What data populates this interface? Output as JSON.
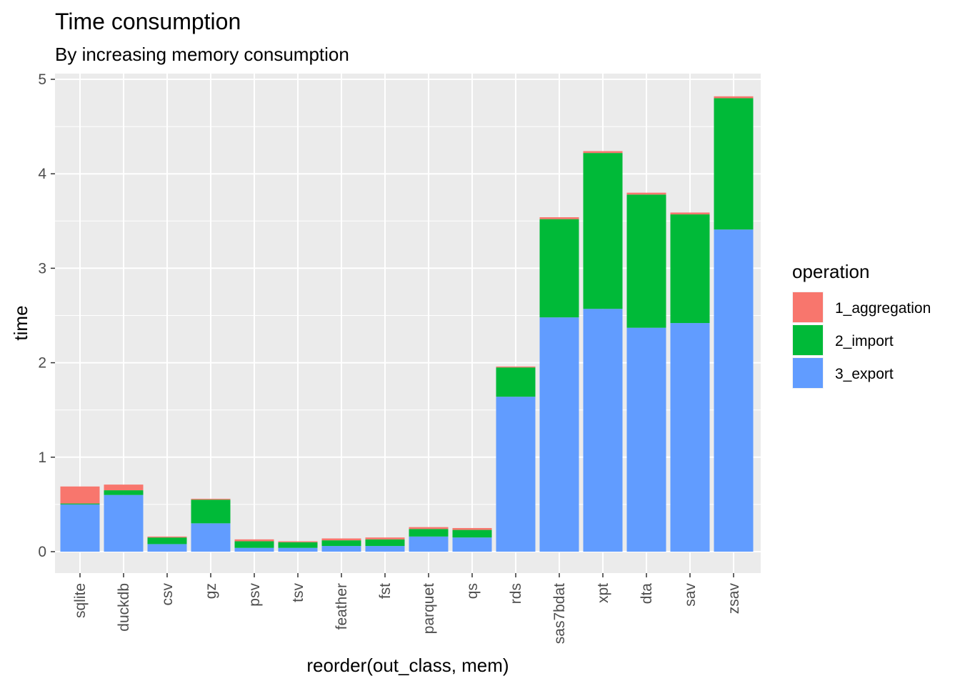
{
  "chart_data": {
    "type": "bar",
    "stacked": true,
    "title": "Time consumption",
    "subtitle": "By increasing memory consumption",
    "xlabel": "reorder(out_class, mem)",
    "ylabel": "time",
    "ylim": [
      0,
      5
    ],
    "yticks": [
      0,
      1,
      2,
      3,
      4,
      5
    ],
    "grid": true,
    "legend": {
      "title": "operation",
      "placement": "right"
    },
    "categories": [
      "sqlite",
      "duckdb",
      "csv",
      "gz",
      "psv",
      "tsv",
      "feather",
      "fst",
      "parquet",
      "qs",
      "rds",
      "sas7bdat",
      "xpt",
      "dta",
      "sav",
      "zsav"
    ],
    "series": [
      {
        "name": "1_aggregation",
        "color": "#F8766D",
        "values": [
          0.18,
          0.06,
          0.01,
          0.01,
          0.02,
          0.01,
          0.02,
          0.02,
          0.02,
          0.02,
          0.01,
          0.02,
          0.02,
          0.02,
          0.02,
          0.02
        ]
      },
      {
        "name": "2_import",
        "color": "#00BA38",
        "values": [
          0.01,
          0.05,
          0.07,
          0.25,
          0.07,
          0.06,
          0.06,
          0.07,
          0.08,
          0.08,
          0.31,
          1.04,
          1.65,
          1.41,
          1.15,
          1.39
        ]
      },
      {
        "name": "3_export",
        "color": "#619CFF",
        "values": [
          0.5,
          0.6,
          0.08,
          0.3,
          0.04,
          0.04,
          0.06,
          0.06,
          0.16,
          0.15,
          1.64,
          2.48,
          2.57,
          2.37,
          2.42,
          3.41
        ]
      }
    ]
  }
}
